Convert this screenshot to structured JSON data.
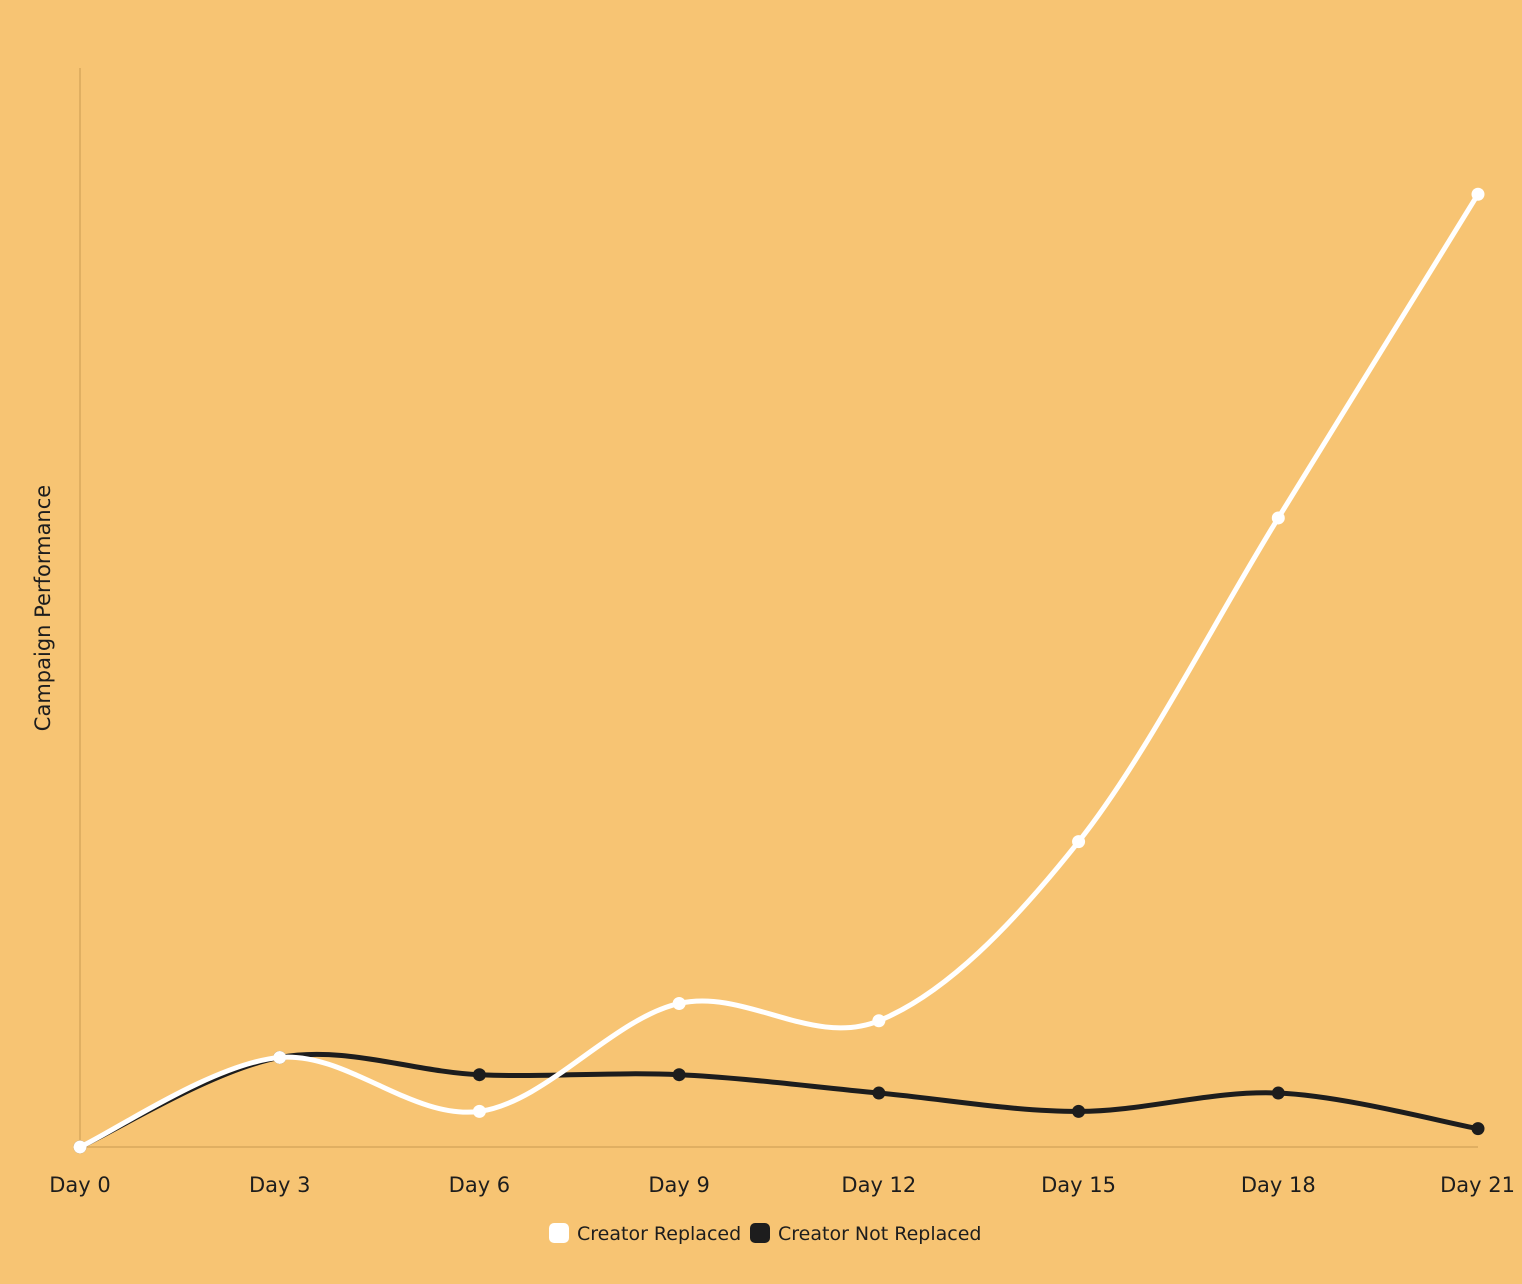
{
  "chart_data": {
    "type": "line",
    "title": "",
    "xlabel": "",
    "ylabel": "Campaign Performance",
    "categories": [
      "Day 0",
      "Day 3",
      "Day 6",
      "Day 9",
      "Day 12",
      "Day 15",
      "Day 18",
      "Day 21"
    ],
    "ylim": [
      0,
      100
    ],
    "grid": false,
    "legend_position": "bottom-center",
    "series": [
      {
        "name": "Creator Replaced",
        "color": "#ffffff",
        "values": [
          0,
          8.3,
          3.3,
          13.3,
          11.7,
          28.3,
          58.3,
          88.3
        ]
      },
      {
        "name": "Creator Not Replaced",
        "color": "#1d1d1d",
        "values": [
          0,
          8.3,
          6.7,
          6.7,
          5,
          3.3,
          5,
          1.7
        ]
      }
    ],
    "colors": {
      "background": "#f7c473",
      "axis": "#d9a85c",
      "text": "#1d1d1d"
    }
  }
}
